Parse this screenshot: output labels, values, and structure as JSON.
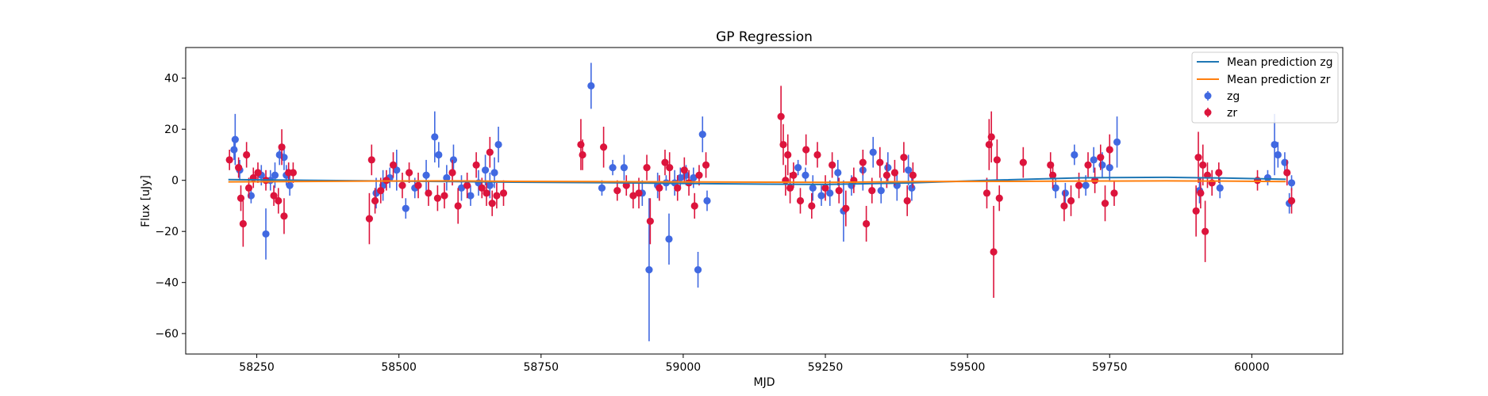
{
  "chart_data": {
    "type": "scatter",
    "title": "GP Regression",
    "xlabel": "MJD",
    "ylabel": "Flux [uJy]",
    "xlim": [
      58125,
      60160
    ],
    "ylim": [
      -68,
      52
    ],
    "xticks": [
      58250,
      58500,
      58750,
      59000,
      59250,
      59500,
      59750,
      60000
    ],
    "yticks": [
      -60,
      -40,
      -20,
      0,
      20,
      40
    ],
    "grid": false,
    "legend_position": "top-right",
    "colors": {
      "zg": "#4169e1",
      "zr": "#dc143c",
      "mean_zg": "#1f77b4",
      "mean_zr": "#ff7f0e"
    },
    "series": [
      {
        "name": "Mean prediction zg",
        "kind": "line",
        "x": [
          58200,
          58300,
          58450,
          58600,
          58700,
          58850,
          59000,
          59150,
          59250,
          59400,
          59550,
          59700,
          59850,
          59950,
          60060
        ],
        "y": [
          0.3,
          0.1,
          -0.2,
          -0.5,
          -0.7,
          -0.9,
          -1.2,
          -1.5,
          -1.6,
          -1.0,
          0.1,
          1.0,
          1.2,
          0.9,
          0.4
        ]
      },
      {
        "name": "Mean prediction zr",
        "kind": "line",
        "x": [
          58200,
          58300,
          58450,
          58600,
          58700,
          58850,
          59000,
          59150,
          59250,
          59400,
          59550,
          59700,
          59850,
          59950,
          60060
        ],
        "y": [
          -0.6,
          -0.5,
          -0.3,
          -0.2,
          -0.4,
          -0.5,
          -0.6,
          -0.7,
          -0.8,
          -0.5,
          -0.4,
          -0.3,
          -0.2,
          -0.3,
          -0.5
        ]
      },
      {
        "name": "zg",
        "kind": "errorbar",
        "points": [
          [
            58210,
            12,
            4
          ],
          [
            58212,
            16,
            10
          ],
          [
            58220,
            4,
            4
          ],
          [
            58240,
            -6,
            3
          ],
          [
            58258,
            2,
            4
          ],
          [
            58266,
            -21,
            10
          ],
          [
            58274,
            0,
            4
          ],
          [
            58282,
            2,
            5
          ],
          [
            58290,
            10,
            4
          ],
          [
            58298,
            9,
            5
          ],
          [
            58302,
            2,
            4
          ],
          [
            58308,
            -2,
            4
          ],
          [
            58460,
            -5,
            6
          ],
          [
            58472,
            -2,
            6
          ],
          [
            58484,
            1,
            4
          ],
          [
            58496,
            4,
            8
          ],
          [
            58512,
            -11,
            4
          ],
          [
            58528,
            -3,
            4
          ],
          [
            58548,
            2,
            6
          ],
          [
            58563,
            17,
            10
          ],
          [
            58570,
            10,
            5
          ],
          [
            58584,
            1,
            5
          ],
          [
            58596,
            8,
            6
          ],
          [
            58610,
            -3,
            5
          ],
          [
            58626,
            -6,
            4
          ],
          [
            58640,
            -1,
            5
          ],
          [
            58652,
            4,
            6
          ],
          [
            58660,
            -2,
            5
          ],
          [
            58668,
            3,
            6
          ],
          [
            58675,
            14,
            7
          ],
          [
            58838,
            37,
            9
          ],
          [
            58857,
            -3,
            3
          ],
          [
            58876,
            5,
            3
          ],
          [
            58896,
            5,
            5
          ],
          [
            58928,
            -5,
            5
          ],
          [
            58940,
            -35,
            28
          ],
          [
            58955,
            -2,
            5
          ],
          [
            58970,
            -1,
            3
          ],
          [
            58975,
            -23,
            10
          ],
          [
            58985,
            -1,
            5
          ],
          [
            58995,
            1,
            4
          ],
          [
            59005,
            2,
            4
          ],
          [
            59018,
            1,
            4
          ],
          [
            59026,
            -35,
            7
          ],
          [
            59034,
            18,
            7
          ],
          [
            59042,
            -8,
            4
          ],
          [
            59202,
            5,
            3
          ],
          [
            59215,
            2,
            3
          ],
          [
            59228,
            -3,
            5
          ],
          [
            59243,
            -6,
            4
          ],
          [
            59258,
            -5,
            5
          ],
          [
            59272,
            3,
            5
          ],
          [
            59282,
            -12,
            12
          ],
          [
            59296,
            -2,
            4
          ],
          [
            59316,
            4,
            8
          ],
          [
            59334,
            11,
            6
          ],
          [
            59348,
            -4,
            5
          ],
          [
            59360,
            5,
            6
          ],
          [
            59376,
            -2,
            6
          ],
          [
            59396,
            4,
            6
          ],
          [
            59402,
            -3,
            5
          ],
          [
            59655,
            -3,
            4
          ],
          [
            59672,
            -5,
            4
          ],
          [
            59688,
            10,
            4
          ],
          [
            59708,
            -2,
            4
          ],
          [
            59722,
            8,
            5
          ],
          [
            59737,
            6,
            5
          ],
          [
            59750,
            5,
            5
          ],
          [
            59763,
            15,
            10
          ],
          [
            59908,
            -4,
            5
          ],
          [
            59944,
            -3,
            4
          ],
          [
            60028,
            1,
            3
          ],
          [
            60040,
            14,
            12
          ],
          [
            60046,
            10,
            5
          ],
          [
            60058,
            7,
            4
          ],
          [
            60066,
            -9,
            4
          ],
          [
            60070,
            -1,
            3
          ]
        ]
      },
      {
        "name": "zr",
        "kind": "errorbar",
        "points": [
          [
            58202,
            8,
            4
          ],
          [
            58218,
            5,
            4
          ],
          [
            58222,
            -7,
            5
          ],
          [
            58226,
            -17,
            9
          ],
          [
            58232,
            10,
            5
          ],
          [
            58236,
            -3,
            4
          ],
          [
            58244,
            1,
            4
          ],
          [
            58252,
            3,
            4
          ],
          [
            58266,
            0,
            4
          ],
          [
            58280,
            -6,
            4
          ],
          [
            58288,
            -8,
            5
          ],
          [
            58294,
            13,
            7
          ],
          [
            58298,
            -14,
            7
          ],
          [
            58306,
            3,
            4
          ],
          [
            58314,
            3,
            4
          ],
          [
            58448,
            -15,
            10
          ],
          [
            58452,
            8,
            6
          ],
          [
            58458,
            -8,
            5
          ],
          [
            58468,
            -4,
            5
          ],
          [
            58478,
            0,
            4
          ],
          [
            58490,
            6,
            5
          ],
          [
            58506,
            -2,
            5
          ],
          [
            58518,
            3,
            4
          ],
          [
            58534,
            -2,
            5
          ],
          [
            58552,
            -5,
            5
          ],
          [
            58568,
            -7,
            5
          ],
          [
            58580,
            -6,
            5
          ],
          [
            58594,
            3,
            5
          ],
          [
            58604,
            -10,
            7
          ],
          [
            58620,
            -2,
            5
          ],
          [
            58636,
            6,
            5
          ],
          [
            58646,
            -3,
            4
          ],
          [
            58654,
            -5,
            5
          ],
          [
            58660,
            11,
            6
          ],
          [
            58664,
            -9,
            5
          ],
          [
            58672,
            -6,
            5
          ],
          [
            58684,
            -5,
            5
          ],
          [
            58820,
            14,
            10
          ],
          [
            58823,
            10,
            6
          ],
          [
            58860,
            13,
            8
          ],
          [
            58884,
            -4,
            4
          ],
          [
            58900,
            -2,
            4
          ],
          [
            58912,
            -6,
            5
          ],
          [
            58922,
            -5,
            6
          ],
          [
            58936,
            5,
            5
          ],
          [
            58942,
            -16,
            9
          ],
          [
            58958,
            -3,
            5
          ],
          [
            58968,
            7,
            5
          ],
          [
            58976,
            5,
            6
          ],
          [
            58990,
            -3,
            5
          ],
          [
            59002,
            4,
            5
          ],
          [
            59010,
            -1,
            5
          ],
          [
            59020,
            -10,
            5
          ],
          [
            59028,
            2,
            4
          ],
          [
            59040,
            6,
            5
          ],
          [
            59172,
            25,
            12
          ],
          [
            59176,
            14,
            8
          ],
          [
            59180,
            0,
            6
          ],
          [
            59184,
            10,
            8
          ],
          [
            59188,
            -3,
            6
          ],
          [
            59194,
            2,
            5
          ],
          [
            59206,
            -8,
            5
          ],
          [
            59216,
            12,
            6
          ],
          [
            59226,
            -10,
            5
          ],
          [
            59236,
            10,
            5
          ],
          [
            59250,
            -3,
            5
          ],
          [
            59262,
            6,
            5
          ],
          [
            59274,
            -4,
            5
          ],
          [
            59286,
            -11,
            7
          ],
          [
            59300,
            0,
            5
          ],
          [
            59316,
            7,
            5
          ],
          [
            59322,
            -17,
            7
          ],
          [
            59332,
            -4,
            5
          ],
          [
            59346,
            7,
            6
          ],
          [
            59358,
            2,
            5
          ],
          [
            59372,
            3,
            5
          ],
          [
            59388,
            9,
            6
          ],
          [
            59394,
            -8,
            6
          ],
          [
            59404,
            2,
            5
          ],
          [
            59534,
            -5,
            6
          ],
          [
            59538,
            14,
            10
          ],
          [
            59542,
            17,
            10
          ],
          [
            59546,
            -28,
            18
          ],
          [
            59552,
            8,
            8
          ],
          [
            59556,
            -7,
            5
          ],
          [
            59598,
            7,
            6
          ],
          [
            59646,
            6,
            5
          ],
          [
            59650,
            2,
            5
          ],
          [
            59670,
            -10,
            6
          ],
          [
            59682,
            -8,
            6
          ],
          [
            59696,
            -2,
            5
          ],
          [
            59712,
            6,
            5
          ],
          [
            59724,
            0,
            5
          ],
          [
            59734,
            9,
            5
          ],
          [
            59742,
            -9,
            7
          ],
          [
            59750,
            12,
            6
          ],
          [
            59758,
            -5,
            5
          ],
          [
            59902,
            -12,
            10
          ],
          [
            59906,
            9,
            10
          ],
          [
            59910,
            -5,
            6
          ],
          [
            59914,
            6,
            8
          ],
          [
            59918,
            -20,
            12
          ],
          [
            59922,
            2,
            5
          ],
          [
            59930,
            -1,
            5
          ],
          [
            59942,
            3,
            4
          ],
          [
            60010,
            0,
            4
          ],
          [
            60062,
            3,
            5
          ],
          [
            60070,
            -8,
            5
          ]
        ]
      }
    ]
  }
}
